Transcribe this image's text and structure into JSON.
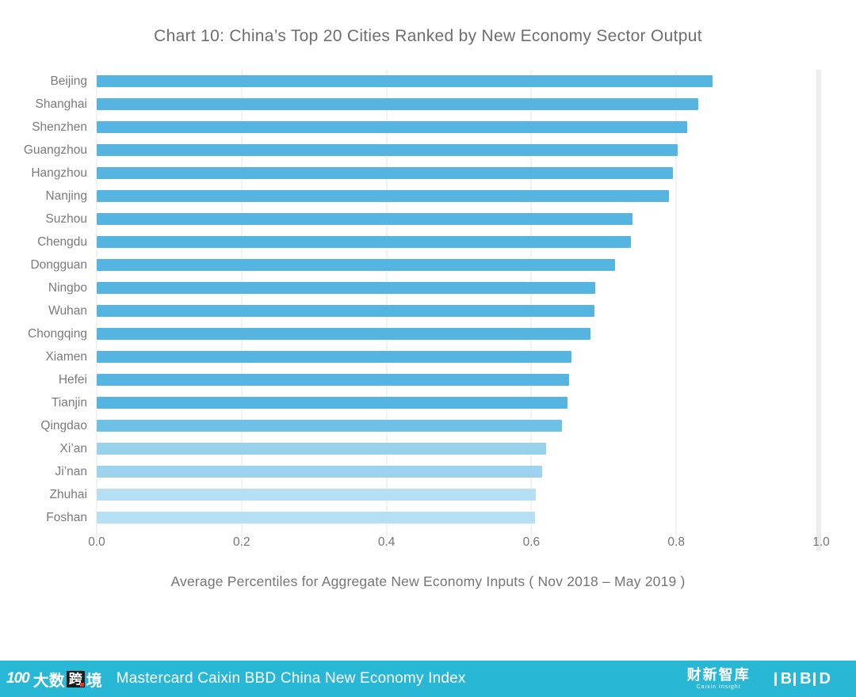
{
  "title": "Chart 10:  China’s Top 20 Cities Ranked by New Economy Sector Output",
  "chart_data": {
    "type": "bar",
    "orientation": "horizontal",
    "title": "Chart 10:  China’s Top 20 Cities Ranked by New Economy Sector Output",
    "categories": [
      "Beijing",
      "Shanghai",
      "Shenzhen",
      "Guangzhou",
      "Hangzhou",
      "Nanjing",
      "Suzhou",
      "Chengdu",
      "Dongguan",
      "Ningbo",
      "Wuhan",
      "Chongqing",
      "Xiamen",
      "Hefei",
      "Tianjin",
      "Qingdao",
      "Xi’an",
      "Ji’nan",
      "Zhuhai",
      "Foshan"
    ],
    "values": [
      0.85,
      0.83,
      0.815,
      0.802,
      0.795,
      0.79,
      0.74,
      0.737,
      0.715,
      0.688,
      0.687,
      0.682,
      0.655,
      0.652,
      0.65,
      0.642,
      0.62,
      0.615,
      0.606,
      0.605
    ],
    "bar_colors": [
      "#56b5e0",
      "#56b5e0",
      "#56b5e0",
      "#56b5e0",
      "#56b5e0",
      "#56b5e0",
      "#56b5e0",
      "#56b5e0",
      "#56b5e0",
      "#56b5e0",
      "#56b5e0",
      "#56b5e0",
      "#56b5e0",
      "#56b5e0",
      "#56b5e0",
      "#6fc0e5",
      "#97d1ec",
      "#9dd3ee",
      "#b7dff3",
      "#b7dff3"
    ],
    "xlabel": "Average Percentiles for Aggregate New Economy Inputs  ( Nov 2018 – May 2019 )",
    "xlim": [
      0,
      1.0
    ],
    "xtick_labels": [
      "0.0",
      "0.2",
      "0.4",
      "0.6",
      "0.8",
      "1.0"
    ],
    "grid": true,
    "legend": "none"
  },
  "footer": {
    "bar_color": "#29b7d6",
    "title": "Mastercard Caixin BBD China New Economy Index",
    "left_logo_mark": "100",
    "left_logo_pre": "大数",
    "left_logo_boxed": "跨",
    "left_logo_post": "境",
    "caixin_logo": "财新智库",
    "caixin_sub": "Caixin Insight",
    "bbd_letters": [
      "B",
      "B",
      "D"
    ]
  }
}
